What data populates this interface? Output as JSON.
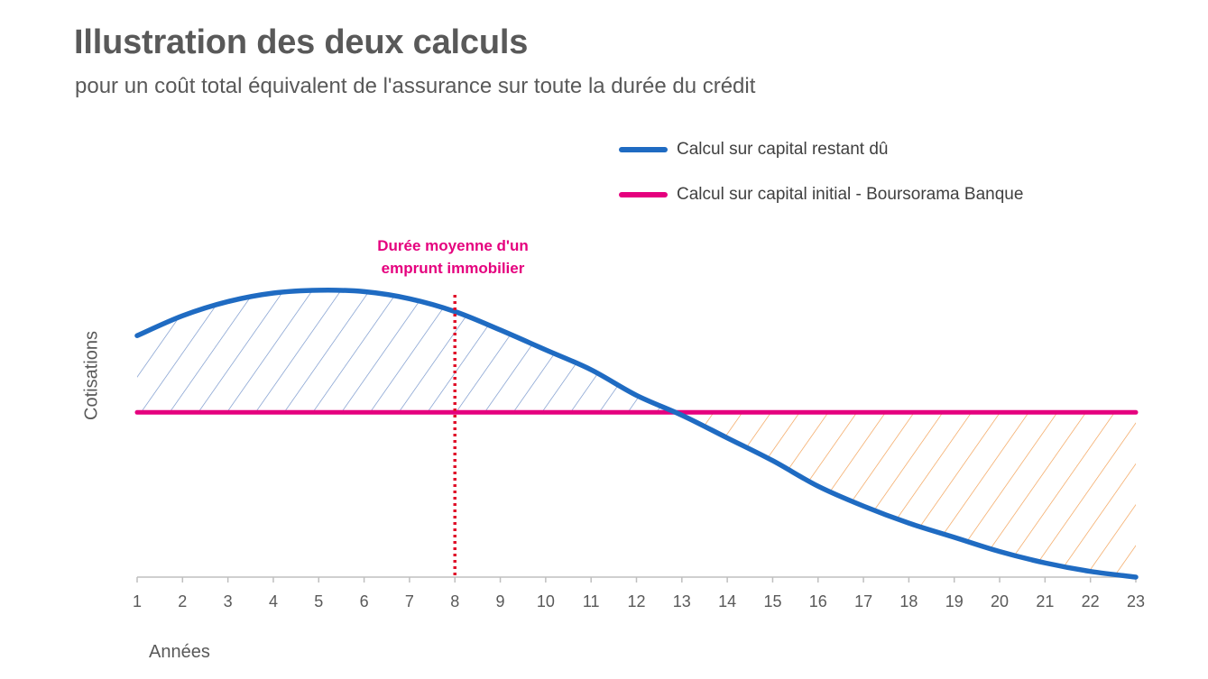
{
  "title": "Illustration des deux calculs",
  "subtitle": "pour un coût total équivalent de l'assurance sur toute la durée du crédit",
  "colors": {
    "blue": "#1F6BC2",
    "magenta": "#E5007E",
    "orange": "#F29A4A",
    "hatch_blue": "#6E8FC8",
    "axis": "#bfbfbf",
    "text": "#595959"
  },
  "legend": [
    {
      "label": "Calcul sur capital restant dû",
      "color": "#1F6BC2"
    },
    {
      "label": "Calcul sur capital initial - Boursorama Banque",
      "color": "#E5007E"
    }
  ],
  "annotation": {
    "line1": "Durée moyenne d'un",
    "line2": "emprunt immobilier",
    "x": 8
  },
  "chart_data": {
    "type": "line",
    "xlabel": "Années",
    "ylabel": "Cotisations",
    "x": [
      1,
      2,
      3,
      4,
      5,
      6,
      7,
      8,
      9,
      10,
      11,
      12,
      13,
      14,
      15,
      16,
      17,
      18,
      19,
      20,
      21,
      22,
      23
    ],
    "ylim": [
      0,
      1
    ],
    "series": [
      {
        "name": "Calcul sur capital restant dû",
        "values": [
          0.85,
          0.92,
          0.97,
          1.0,
          1.01,
          1.005,
          0.98,
          0.935,
          0.87,
          0.8,
          0.73,
          0.64,
          0.57,
          0.49,
          0.41,
          0.32,
          0.25,
          0.19,
          0.14,
          0.09,
          0.05,
          0.02,
          0.0
        ]
      },
      {
        "name": "Calcul sur capital initial - Boursorama Banque",
        "values": [
          0.58,
          0.58,
          0.58,
          0.58,
          0.58,
          0.58,
          0.58,
          0.58,
          0.58,
          0.58,
          0.58,
          0.58,
          0.58,
          0.58,
          0.58,
          0.58,
          0.58,
          0.58,
          0.58,
          0.58,
          0.58,
          0.58,
          0.58
        ]
      }
    ],
    "grid": false,
    "legend_position": "top-right"
  }
}
